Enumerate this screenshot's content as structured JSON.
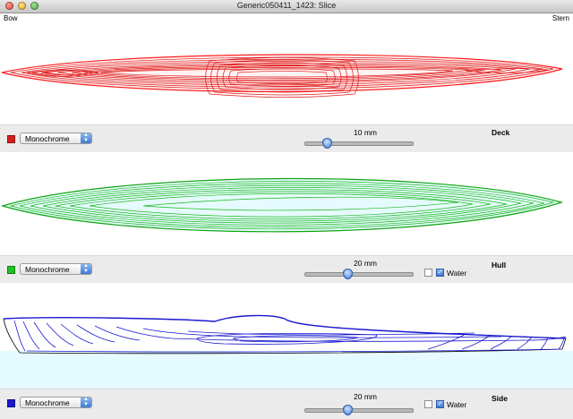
{
  "window": {
    "title": "Generic050411_1423: Slice"
  },
  "panels": {
    "deck": {
      "bow_label": "Bow",
      "stern_label": "Stern",
      "name": "Deck",
      "color": "#d91c1c",
      "mode": "Monochrome",
      "slice_value": "10 mm",
      "slider_level": 0.22
    },
    "hull": {
      "name": "Hull",
      "color": "#1ec41e",
      "mode": "Monochrome",
      "slice_value": "20 mm",
      "slider_level": 0.4,
      "water_label": "Water",
      "water_checked": true
    },
    "side": {
      "name": "Side",
      "color": "#1a1ad0",
      "mode": "Monochrome",
      "slice_value": "20 mm",
      "slider_level": 0.4,
      "water_label": "Water",
      "water_checked": true
    }
  },
  "icons": {
    "close": "close-icon",
    "minimize": "minimize-icon",
    "zoom": "zoom-icon",
    "popup_arrows": "chevron-updown-icon",
    "checkmark": "checkmark-icon"
  }
}
